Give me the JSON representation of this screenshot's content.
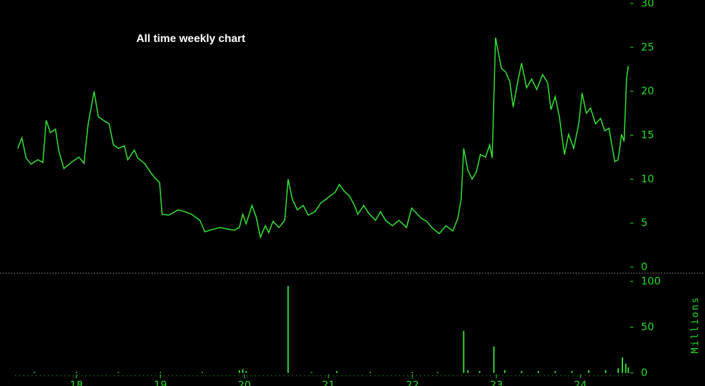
{
  "chart_data": [
    {
      "type": "line",
      "title": "All time weekly chart",
      "color": "#33dd33",
      "x": [
        17.3,
        17.35,
        17.4,
        17.46,
        17.54,
        17.6,
        17.64,
        17.69,
        17.75,
        17.79,
        17.85,
        17.95,
        18.03,
        18.09,
        18.14,
        18.21,
        18.26,
        18.32,
        18.39,
        18.44,
        18.5,
        18.57,
        18.61,
        18.69,
        18.73,
        18.81,
        18.88,
        18.93,
        18.99,
        19.02,
        19.1,
        19.21,
        19.29,
        19.37,
        19.47,
        19.53,
        19.63,
        19.71,
        19.8,
        19.88,
        19.94,
        19.98,
        20.02,
        20.09,
        20.14,
        20.19,
        20.25,
        20.29,
        20.34,
        20.41,
        20.48,
        20.52,
        20.57,
        20.63,
        20.7,
        20.76,
        20.84,
        20.91,
        20.97,
        21.02,
        21.08,
        21.13,
        21.19,
        21.25,
        21.31,
        21.35,
        21.42,
        21.48,
        21.56,
        21.62,
        21.68,
        21.76,
        21.84,
        21.93,
        21.99,
        22.05,
        22.11,
        22.17,
        22.24,
        22.32,
        22.4,
        22.48,
        22.54,
        22.58,
        22.61,
        22.66,
        22.71,
        22.76,
        22.81,
        22.87,
        22.92,
        22.95,
        22.99,
        23.06,
        23.11,
        23.16,
        23.2,
        23.25,
        23.3,
        23.36,
        23.42,
        23.48,
        23.55,
        23.61,
        23.65,
        23.7,
        23.75,
        23.81,
        23.86,
        23.92,
        23.98,
        24.02,
        24.07,
        24.12,
        24.18,
        24.24,
        24.29,
        24.34,
        24.41,
        24.45,
        24.49,
        24.52,
        24.55,
        24.57
      ],
      "values": [
        13.5,
        14.7,
        12.4,
        11.7,
        12.2,
        11.9,
        16.7,
        15.3,
        15.7,
        13.2,
        11.2,
        12.0,
        12.5,
        11.8,
        16.3,
        20.0,
        17.1,
        16.7,
        16.3,
        13.9,
        13.5,
        13.8,
        12.2,
        13.3,
        12.4,
        11.8,
        10.8,
        10.2,
        9.6,
        6.0,
        5.9,
        6.5,
        6.3,
        6.0,
        5.3,
        4.0,
        4.3,
        4.5,
        4.3,
        4.2,
        4.5,
        6.0,
        4.9,
        7.0,
        5.7,
        3.4,
        4.7,
        3.9,
        5.2,
        4.5,
        5.3,
        10.0,
        7.7,
        6.5,
        7.0,
        5.9,
        6.3,
        7.3,
        7.7,
        8.1,
        8.5,
        9.4,
        8.6,
        8.1,
        7.0,
        6.0,
        7.0,
        6.1,
        5.3,
        6.3,
        5.3,
        4.7,
        5.3,
        4.5,
        6.7,
        6.1,
        5.5,
        5.2,
        4.4,
        3.8,
        4.7,
        4.1,
        5.5,
        7.7,
        13.5,
        11.0,
        10.0,
        10.8,
        12.8,
        12.5,
        13.9,
        12.4,
        26.1,
        22.6,
        22.2,
        21.1,
        18.2,
        20.9,
        23.2,
        20.4,
        21.4,
        20.2,
        21.9,
        21.0,
        17.9,
        19.4,
        17.1,
        12.8,
        15.1,
        13.5,
        16.3,
        19.8,
        17.5,
        18.1,
        16.3,
        16.9,
        15.5,
        15.8,
        12.0,
        12.2,
        15.1,
        14.3,
        21.4,
        22.9
      ],
      "xlim": [
        17.27,
        24.59
      ],
      "ylim": [
        0,
        30
      ],
      "yticks": [
        0,
        5,
        10,
        15,
        20,
        25,
        30
      ]
    },
    {
      "type": "bar",
      "ylabel": "Millions",
      "color": "#33dd33",
      "x": [
        17.5,
        18.0,
        18.5,
        19.0,
        19.5,
        19.94,
        19.98,
        20.02,
        20.52,
        20.8,
        21.1,
        21.5,
        22.0,
        22.3,
        22.61,
        22.66,
        22.8,
        22.97,
        23.1,
        23.3,
        23.5,
        23.7,
        23.9,
        24.1,
        24.3,
        24.45,
        24.5,
        24.54,
        24.57
      ],
      "values": [
        1,
        1,
        1,
        1,
        1,
        3,
        4,
        2,
        95,
        1,
        2,
        1,
        1,
        1,
        46,
        3,
        2,
        29,
        3,
        2,
        2,
        2,
        2,
        3,
        3,
        5,
        17,
        10,
        6
      ],
      "xlim": [
        17.27,
        24.59
      ],
      "ylim": [
        0,
        100
      ],
      "yticks": [
        0,
        50,
        100
      ],
      "xticks": [
        {
          "value": 18,
          "label": "18"
        },
        {
          "value": 19,
          "label": "19"
        },
        {
          "value": 20,
          "label": "20"
        },
        {
          "value": 21,
          "label": "21"
        },
        {
          "value": 22,
          "label": "22"
        },
        {
          "value": 23,
          "label": "23"
        },
        {
          "value": 24,
          "label": "24"
        }
      ]
    }
  ]
}
